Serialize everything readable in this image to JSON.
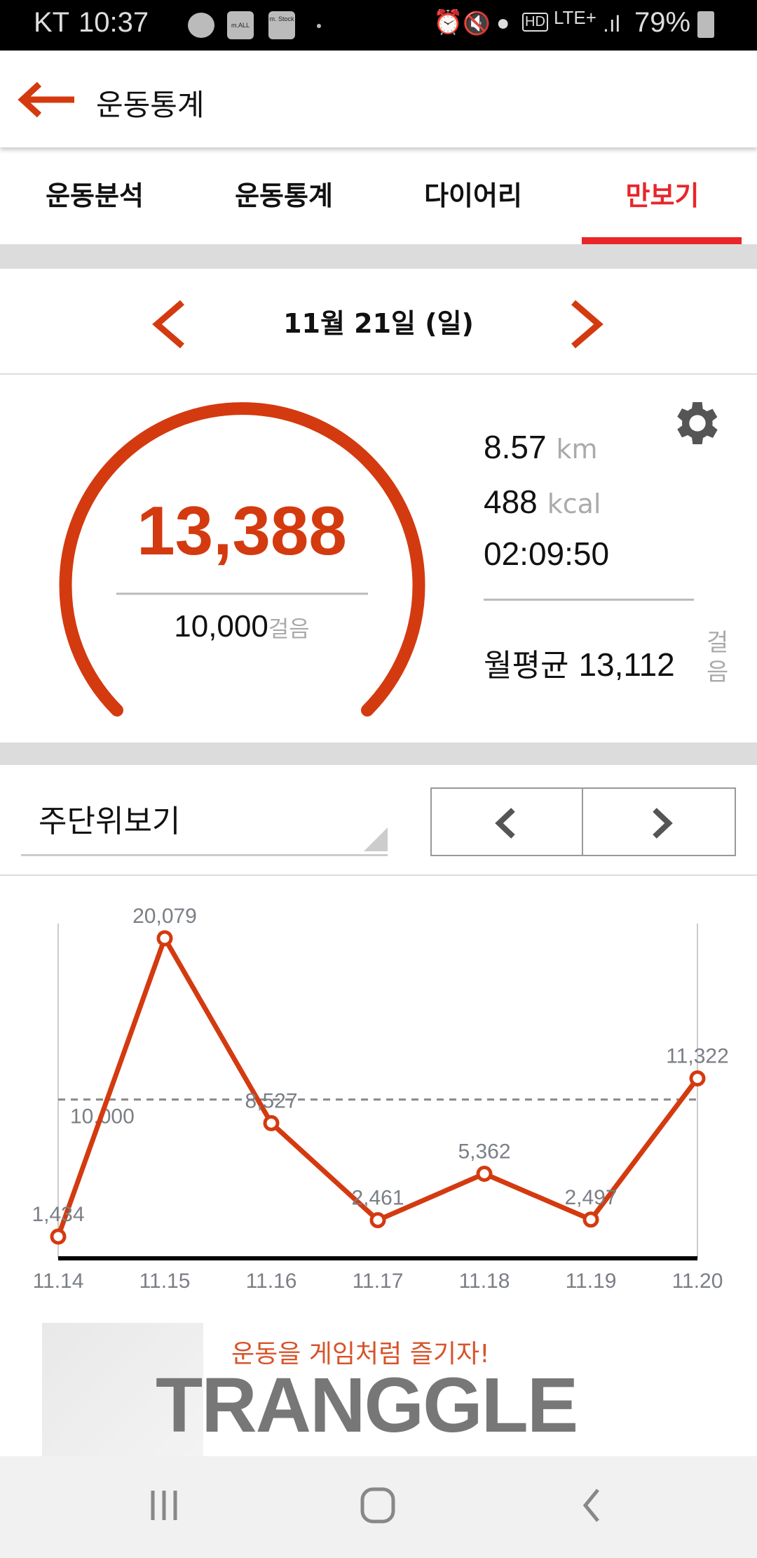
{
  "status_bar": {
    "carrier": "KT",
    "time": "10:37",
    "apps": [
      "m.ALL",
      "m. Stock"
    ],
    "battery": "79%",
    "network": "LTE+"
  },
  "header": {
    "title": "운동통계"
  },
  "tabs": [
    {
      "label": "운동분석"
    },
    {
      "label": "운동통계"
    },
    {
      "label": "다이어리"
    },
    {
      "label": "만보기",
      "active": true
    }
  ],
  "date_nav": {
    "date": "11월 21일 (일)"
  },
  "summary": {
    "steps": "13,388",
    "goal": "10,000",
    "goal_unit": "걸음",
    "distance": "8.57",
    "distance_unit": "km",
    "calories": "488",
    "calories_unit": "kcal",
    "duration": "02:09:50",
    "monthly_avg_label": "월평균",
    "monthly_avg": "13,112",
    "monthly_avg_unit": "걸음",
    "goal_progress": 1.3388
  },
  "week": {
    "selector": "주단위보기"
  },
  "colors": {
    "accent": "#d43a0f",
    "tab_active": "#e8262a"
  },
  "chart_data": {
    "type": "line",
    "categories": [
      "11.14",
      "11.15",
      "11.16",
      "11.17",
      "11.18",
      "11.19",
      "11.20"
    ],
    "values": [
      1434,
      20079,
      8527,
      2461,
      5362,
      2497,
      11322
    ],
    "data_labels": [
      "1,434",
      "20,079",
      "8,527",
      "2,461",
      "5,362",
      "2,497",
      "11,322"
    ],
    "reference_line": {
      "value": 10000,
      "label": "10,000"
    },
    "grid": false
  },
  "brand": {
    "slogan": "운동을 게임처럼 즐기자!",
    "logo": "TRANGGLE"
  }
}
